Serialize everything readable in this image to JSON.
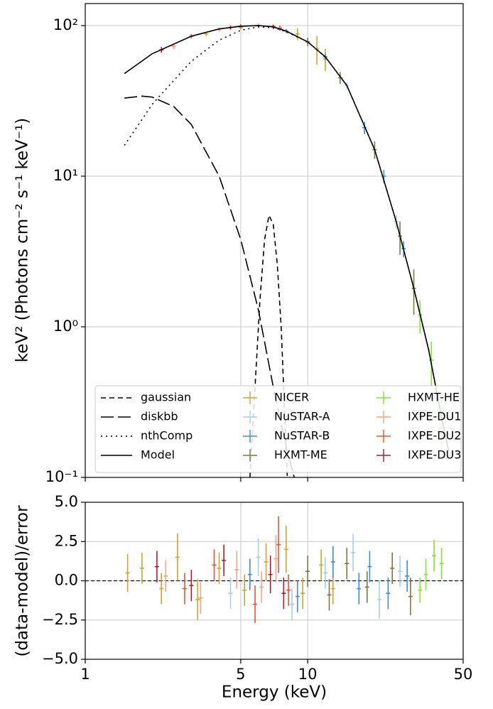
{
  "chart_data": [
    {
      "type": "line",
      "ylabel": "keV² (Photons cm⁻² s⁻¹ keV⁻¹)",
      "xlog": true,
      "ylog": true,
      "grid": true,
      "xlim": [
        1,
        50
      ],
      "ylim": [
        0.1,
        140
      ],
      "xticks": [
        1,
        5,
        10,
        50
      ],
      "yticks": [
        {
          "value": 0.1,
          "label": "10⁻¹"
        },
        {
          "value": 1,
          "label": "10⁰"
        },
        {
          "value": 10,
          "label": "10¹"
        },
        {
          "value": 100,
          "label": "10²"
        }
      ],
      "legend": "lower left",
      "series": [
        {
          "name": "gaussian",
          "color": "#000000",
          "dash": "dashed",
          "x": [
            5.5,
            5.8,
            6.1,
            6.4,
            6.7,
            7.0,
            7.3,
            7.6,
            8.1
          ],
          "values": [
            0.1,
            0.4,
            1.5,
            3.8,
            5.5,
            4.8,
            2.6,
            1.0,
            0.1
          ]
        },
        {
          "name": "diskbb",
          "color": "#000000",
          "dash": "longdash",
          "x": [
            1.5,
            1.8,
            2,
            2.5,
            3,
            4,
            5,
            6,
            7,
            8,
            8.7
          ],
          "values": [
            33,
            34,
            33.5,
            29,
            22,
            10,
            3.8,
            1.3,
            0.4,
            0.16,
            0.1
          ]
        },
        {
          "name": "nthComp",
          "color": "#000000",
          "dash": "dotted",
          "x": [
            1.5,
            2,
            3,
            4,
            5,
            6,
            7,
            8,
            10,
            12,
            15,
            20,
            25,
            30,
            35,
            40,
            43
          ],
          "values": [
            16,
            30,
            58,
            80,
            93,
            98,
            97,
            91,
            78,
            62,
            40,
            15,
            5,
            1.8,
            0.7,
            0.25,
            0.15
          ]
        },
        {
          "name": "Model",
          "color": "#000000",
          "dash": "solid",
          "x": [
            1.5,
            2,
            3,
            4,
            5,
            6,
            7,
            8,
            10,
            12,
            15,
            20,
            25,
            30,
            35,
            40,
            43
          ],
          "values": [
            48,
            65,
            85,
            95,
            99,
            100,
            98,
            92,
            78,
            62,
            40,
            15,
            5,
            1.8,
            0.7,
            0.25,
            0.15
          ]
        }
      ],
      "instruments": [
        {
          "name": "NICER",
          "color": "#d4a42a",
          "x": [
            2.5,
            3.5,
            5,
            7,
            9,
            11,
            12
          ],
          "values": [
            73,
            88,
            97,
            99,
            88,
            70,
            60
          ],
          "errors": [
            3,
            3,
            3,
            3,
            8,
            15,
            10
          ]
        },
        {
          "name": "NuSTAR-A",
          "color": "#a6cdea",
          "x": [
            4,
            6,
            10,
            15,
            20,
            25
          ],
          "values": [
            94,
            100,
            78,
            40,
            15,
            5
          ],
          "errors": [
            3,
            3,
            3,
            2,
            1,
            0.5
          ]
        },
        {
          "name": "NuSTAR-B",
          "color": "#3b8fd0",
          "x": [
            5,
            8,
            12,
            18,
            22,
            27
          ],
          "values": [
            99,
            92,
            62,
            21,
            10,
            3.3
          ],
          "errors": [
            3,
            3,
            3,
            2,
            1,
            0.4
          ]
        },
        {
          "name": "HXMT-ME",
          "color": "#7a7a40",
          "x": [
            10,
            14,
            20,
            26,
            30
          ],
          "values": [
            78,
            45,
            15,
            4,
            1.8
          ],
          "errors": [
            5,
            4,
            2,
            1,
            0.6
          ]
        },
        {
          "name": "HXMT-HE",
          "color": "#7fe62a",
          "x": [
            32,
            36,
            40
          ],
          "values": [
            1.2,
            0.6,
            0.25
          ],
          "errors": [
            0.3,
            0.2,
            0.1
          ]
        },
        {
          "name": "IXPE-DU1",
          "color": "#f4a582",
          "x": [
            2.5,
            4,
            6
          ],
          "values": [
            73,
            94,
            100
          ],
          "errors": [
            3,
            3,
            3
          ]
        },
        {
          "name": "IXPE-DU2",
          "color": "#f05030",
          "x": [
            3,
            5,
            7.5
          ],
          "values": [
            85,
            99,
            96
          ],
          "errors": [
            3,
            3,
            4
          ]
        },
        {
          "name": "IXPE-DU3",
          "color": "#b2182b",
          "x": [
            2.2,
            4.5,
            7
          ],
          "values": [
            69,
            97,
            98
          ],
          "errors": [
            3,
            3,
            3
          ]
        }
      ]
    },
    {
      "type": "errorbar",
      "xlabel": "Energy (keV)",
      "ylabel": "(data-model)/error",
      "xlog": true,
      "ylog": false,
      "grid": true,
      "xlim": [
        1,
        50
      ],
      "ylim": [
        -5,
        5
      ],
      "xticks": [
        1,
        5,
        10,
        50
      ],
      "yticks": [
        {
          "value": -5,
          "label": "−5.0"
        },
        {
          "value": -2.5,
          "label": "−2.5"
        },
        {
          "value": 0,
          "label": "0.0"
        },
        {
          "value": 2.5,
          "label": "2.5"
        },
        {
          "value": 5,
          "label": "5.0"
        }
      ],
      "hline": 0,
      "series": [
        {
          "color": "#d4a42a",
          "x": [
            1.55,
            1.8,
            2.2,
            2.6,
            3.2,
            4,
            5.2,
            6.5,
            8,
            9.5,
            11.5,
            13
          ],
          "values": [
            0.5,
            0.8,
            -0.5,
            1.5,
            -1.2,
            0.8,
            -0.6,
            1.2,
            2.0,
            -0.8,
            1.0,
            -0.5
          ],
          "errors": [
            1.2,
            1.0,
            1.0,
            1.5,
            1.3,
            1.0,
            1.0,
            1.2,
            1.5,
            1.0,
            1.0,
            1.0
          ]
        },
        {
          "color": "#a6cdea",
          "x": [
            4.5,
            6,
            8.5,
            12,
            16,
            21,
            26
          ],
          "values": [
            -0.8,
            1.5,
            -1.5,
            0.5,
            1.8,
            -1.2,
            0.6
          ],
          "errors": [
            1.0,
            1.2,
            1.0,
            1.0,
            1.2,
            1.2,
            1.0
          ]
        },
        {
          "color": "#3b8fd0",
          "x": [
            5.5,
            9,
            13,
            17,
            19,
            23,
            28
          ],
          "values": [
            0.4,
            -1.0,
            1.2,
            -0.5,
            0.9,
            -0.8,
            0.3
          ],
          "errors": [
            1.0,
            1.0,
            1.0,
            1.0,
            1.0,
            1.0,
            1.0
          ]
        },
        {
          "color": "#7a7a40",
          "x": [
            10,
            12.5,
            15,
            18.5,
            24,
            29
          ],
          "values": [
            0.6,
            -0.9,
            1.1,
            -0.4,
            0.8,
            -1.0
          ],
          "errors": [
            1.0,
            1.0,
            1.0,
            1.0,
            1.0,
            1.2
          ]
        },
        {
          "color": "#7fe62a",
          "x": [
            32,
            34,
            37,
            40
          ],
          "values": [
            -0.6,
            0.4,
            1.6,
            1.1
          ],
          "errors": [
            0.8,
            1.0,
            1.0,
            1.0
          ]
        },
        {
          "color": "#f4a582",
          "x": [
            2.3,
            3.3,
            4.8,
            6.2,
            7.2
          ],
          "values": [
            0.3,
            -1.1,
            0.7,
            -0.4,
            1.4
          ],
          "errors": [
            1.0,
            1.0,
            1.2,
            1.0,
            1.5
          ]
        },
        {
          "color": "#f05030",
          "x": [
            2.8,
            3.8,
            5.8,
            7.4,
            8.2
          ],
          "values": [
            -0.5,
            1.0,
            -1.5,
            2.3,
            -0.6
          ],
          "errors": [
            1.0,
            1.0,
            1.2,
            1.8,
            1.0
          ]
        },
        {
          "color": "#b2182b",
          "x": [
            2.1,
            3.0,
            4.2,
            6.8,
            7.8
          ],
          "values": [
            0.9,
            -0.3,
            1.3,
            0.4,
            -0.8
          ],
          "errors": [
            1.0,
            1.0,
            1.0,
            1.2,
            1.0
          ]
        }
      ]
    }
  ]
}
